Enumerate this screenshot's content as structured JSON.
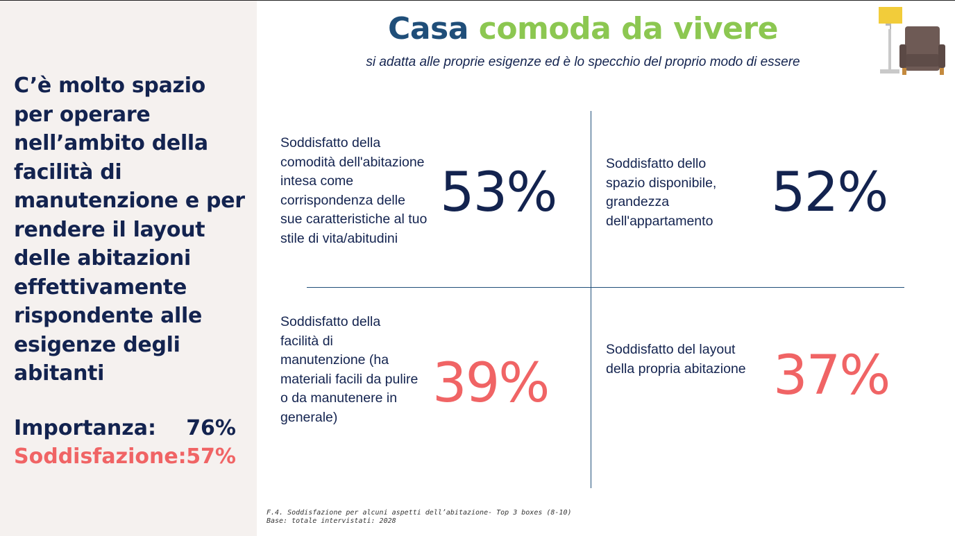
{
  "sidebar": {
    "headline": "C’è molto spazio per operare nell’ambito della facilità di manutenzione e per rendere il layout delle abitazioni effettivamente rispondente alle esigenze degli abitanti",
    "importance_label": "Importanza:",
    "importance_value": "76%",
    "satisfaction_label": "Soddisfazione:",
    "satisfaction_value": "57%"
  },
  "header": {
    "title_part1": "Casa",
    "title_part2": "comoda da vivere",
    "subtitle": "si adatta alle proprie esigenze ed è lo specchio del proprio modo di essere"
  },
  "quadrants": [
    {
      "label": "Soddisfatto della comodità dell'abitazione intesa come corrispondenza delle sue caratteristiche al tuo stile di vita/abitudini",
      "value": "53%"
    },
    {
      "label": "Soddisfatto dello spazio disponibile, grandezza dell'appartamento",
      "value": "52%"
    },
    {
      "label": "Soddisfatto della facilità di manutenzione  (ha materiali facili da pulire o da manutenere in generale)",
      "value": "39%"
    },
    {
      "label": "Soddisfatto del layout della propria abitazione",
      "value": "37%"
    }
  ],
  "footnote": {
    "line1": "F.4. Soddisfazione per alcuni aspetti dell’abitazione- Top 3 boxes (8-10)",
    "line2": "Base: totale intervistati: 2028"
  },
  "icons": {
    "illustration": "floor-lamp-and-armchair-icon"
  },
  "colors": {
    "navy": "#13234f",
    "title_blue": "#1f4e79",
    "green": "#8cc751",
    "coral": "#f06465",
    "sidebar_bg": "#f5f1ef"
  }
}
